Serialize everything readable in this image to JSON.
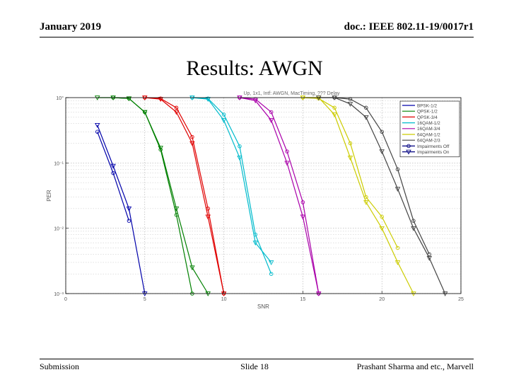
{
  "header": {
    "left": "January 2019",
    "right": "doc.: IEEE 802.11-19/0017r1"
  },
  "slide_title": "Results: AWGN",
  "footer": {
    "left": "Submission",
    "center": "Slide 18",
    "right": "Prashant Sharma and etc., Marvell"
  },
  "chart_data": {
    "type": "line",
    "title": "Up, 1x1, Intf: AWGN, MacTiming, ??? Delay",
    "xlabel": "SNR",
    "ylabel": "PER",
    "xlim": [
      0,
      25
    ],
    "ylim": [
      0.001,
      1
    ],
    "yscale": "log",
    "xticks": [
      "0",
      "5",
      "10",
      "15",
      "20",
      "25"
    ],
    "yticks": [
      "10°",
      "10⁻¹",
      "10⁻²",
      "10⁻³"
    ],
    "grid": true,
    "legend_position": "top-right",
    "legend": [
      {
        "label": "BPSK-1/2",
        "color": "#0000aa",
        "marker": "none"
      },
      {
        "label": "QPSK-1/2",
        "color": "#008000",
        "marker": "none"
      },
      {
        "label": "QPSK-3/4",
        "color": "#e00000",
        "marker": "none"
      },
      {
        "label": "16QAM-1/2",
        "color": "#00bbcc",
        "marker": "none"
      },
      {
        "label": "16QAM-3/4",
        "color": "#aa00aa",
        "marker": "none"
      },
      {
        "label": "64QAM-1/2",
        "color": "#cccc00",
        "marker": "none"
      },
      {
        "label": "64QAM-2/3",
        "color": "#444444",
        "marker": "none"
      },
      {
        "label": "Impairments Off",
        "color": "#000080",
        "marker": "circle"
      },
      {
        "label": "Impairments On",
        "color": "#000080",
        "marker": "triangle"
      }
    ],
    "series": [
      {
        "name": "BPSK-1/2",
        "impairments": "Off",
        "color": "#0000aa",
        "marker": "circle",
        "x": [
          2.0,
          3.0,
          4.0
        ],
        "y": [
          0.3,
          0.07,
          0.013
        ]
      },
      {
        "name": "BPSK-1/2",
        "impairments": "On",
        "color": "#0000aa",
        "marker": "triangle",
        "x": [
          2.0,
          3.0,
          4.0,
          5.0
        ],
        "y": [
          0.38,
          0.09,
          0.02,
          0.001
        ]
      },
      {
        "name": "QPSK-1/2",
        "impairments": "Off",
        "color": "#008000",
        "marker": "circle",
        "x": [
          3.0,
          4.0,
          5.0,
          6.0,
          7.0,
          8.0
        ],
        "y": [
          1.0,
          0.97,
          0.6,
          0.16,
          0.016,
          0.001
        ]
      },
      {
        "name": "QPSK-1/2",
        "impairments": "On",
        "color": "#008000",
        "marker": "triangle",
        "x": [
          2.0,
          3.0,
          4.0,
          5.0,
          6.0,
          7.0,
          8.0,
          9.0
        ],
        "y": [
          1.0,
          1.0,
          0.97,
          0.6,
          0.17,
          0.02,
          0.0025,
          0.001
        ]
      },
      {
        "name": "QPSK-3/4",
        "impairments": "Off",
        "color": "#e00000",
        "marker": "circle",
        "x": [
          5.0,
          6.0,
          7.0,
          8.0,
          9.0,
          10.0
        ],
        "y": [
          1.0,
          0.97,
          0.7,
          0.25,
          0.02,
          0.001
        ]
      },
      {
        "name": "QPSK-3/4",
        "impairments": "On",
        "color": "#e00000",
        "marker": "triangle",
        "x": [
          5.0,
          6.0,
          7.0,
          8.0,
          9.0,
          10.0
        ],
        "y": [
          1.0,
          0.95,
          0.6,
          0.2,
          0.015,
          0.001
        ]
      },
      {
        "name": "16QAM-1/2",
        "impairments": "Off",
        "color": "#00bbcc",
        "marker": "circle",
        "x": [
          8.0,
          9.0,
          10.0,
          11.0,
          12.0,
          13.0
        ],
        "y": [
          1.0,
          0.97,
          0.55,
          0.18,
          0.008,
          0.002
        ]
      },
      {
        "name": "16QAM-1/2",
        "impairments": "On",
        "color": "#00bbcc",
        "marker": "triangle",
        "x": [
          8.0,
          9.0,
          10.0,
          11.0,
          12.0,
          13.0
        ],
        "y": [
          1.0,
          0.95,
          0.45,
          0.12,
          0.006,
          0.003
        ]
      },
      {
        "name": "16QAM-3/4",
        "impairments": "Off",
        "color": "#aa00aa",
        "marker": "circle",
        "x": [
          11.0,
          12.0,
          13.0,
          14.0,
          15.0,
          16.0
        ],
        "y": [
          1.0,
          0.95,
          0.6,
          0.15,
          0.025,
          0.001
        ]
      },
      {
        "name": "16QAM-3/4",
        "impairments": "On",
        "color": "#aa00aa",
        "marker": "triangle",
        "x": [
          11.0,
          12.0,
          13.0,
          14.0,
          15.0,
          16.0
        ],
        "y": [
          1.0,
          0.9,
          0.45,
          0.1,
          0.015,
          0.001
        ]
      },
      {
        "name": "64QAM-1/2",
        "impairments": "Off",
        "color": "#cccc00",
        "marker": "circle",
        "x": [
          15.0,
          16.0,
          17.0,
          18.0,
          19.0,
          20.0,
          21.0
        ],
        "y": [
          1.0,
          0.97,
          0.7,
          0.2,
          0.03,
          0.015,
          0.005
        ]
      },
      {
        "name": "64QAM-1/2",
        "impairments": "On",
        "color": "#cccc00",
        "marker": "triangle",
        "x": [
          15.0,
          16.0,
          17.0,
          18.0,
          19.0,
          20.0,
          21.0,
          22.0
        ],
        "y": [
          1.0,
          1.0,
          0.55,
          0.12,
          0.025,
          0.01,
          0.003,
          0.001
        ]
      },
      {
        "name": "64QAM-2/3",
        "impairments": "Off",
        "color": "#444444",
        "marker": "circle",
        "x": [
          17.0,
          18.0,
          19.0,
          20.0,
          21.0,
          22.0,
          23.0
        ],
        "y": [
          1.0,
          0.95,
          0.7,
          0.3,
          0.08,
          0.013,
          0.004
        ]
      },
      {
        "name": "64QAM-2/3",
        "impairments": "On",
        "color": "#444444",
        "marker": "triangle",
        "x": [
          16.0,
          17.0,
          18.0,
          19.0,
          20.0,
          21.0,
          22.0,
          23.0,
          24.0
        ],
        "y": [
          1.0,
          1.0,
          0.8,
          0.5,
          0.15,
          0.04,
          0.01,
          0.0035,
          0.001
        ]
      }
    ]
  }
}
